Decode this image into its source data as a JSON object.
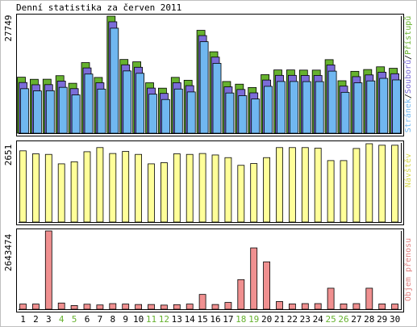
{
  "chart_data": [
    {
      "type": "bar",
      "title": "Denní statistika za červen 2011",
      "categories": [
        "1",
        "2",
        "3",
        "4",
        "5",
        "6",
        "7",
        "8",
        "9",
        "10",
        "11",
        "12",
        "13",
        "14",
        "15",
        "16",
        "17",
        "18",
        "19",
        "20",
        "21",
        "22",
        "23",
        "24",
        "25",
        "26",
        "27",
        "28",
        "29",
        "30"
      ],
      "weekend_days": [
        "4",
        "5",
        "11",
        "12",
        "18",
        "19",
        "25",
        "26"
      ],
      "ylabel": "27749",
      "legend": [
        "Stránek",
        "Souborů",
        "Přístupů"
      ],
      "ylim": [
        0,
        27749
      ],
      "series": [
        {
          "name": "Přístupů",
          "color": "#66b22e",
          "values": [
            13280,
            12780,
            12800,
            13640,
            11840,
            16740,
            13220,
            27749,
            17480,
            16930,
            11960,
            10680,
            13240,
            12560,
            24390,
            19310,
            12260,
            11630,
            10840,
            13880,
            15000,
            15000,
            14960,
            14960,
            17440,
            12440,
            14670,
            15100,
            15740,
            15390
          ]
        },
        {
          "name": "Souborů",
          "color": "#7b6cd8",
          "values": [
            12400,
            11870,
            11900,
            12740,
            10950,
            15860,
            12340,
            26800,
            16600,
            16020,
            11080,
            9820,
            12350,
            11660,
            23530,
            18420,
            11370,
            10750,
            9950,
            12990,
            14100,
            14100,
            14070,
            14070,
            16560,
            11550,
            13790,
            14200,
            14840,
            14490
          ]
        },
        {
          "name": "Stránek",
          "color": "#70b7f0",
          "values": [
            11320,
            10800,
            10840,
            11640,
            9840,
            14790,
            11230,
            25660,
            15530,
            14970,
            10020,
            8760,
            11240,
            10550,
            22460,
            17330,
            10300,
            9660,
            8880,
            11880,
            13030,
            13030,
            13000,
            13000,
            15480,
            10460,
            12710,
            13160,
            13770,
            13400
          ]
        }
      ]
    },
    {
      "type": "bar",
      "categories": [
        "1",
        "2",
        "3",
        "4",
        "5",
        "6",
        "7",
        "8",
        "9",
        "10",
        "11",
        "12",
        "13",
        "14",
        "15",
        "16",
        "17",
        "18",
        "19",
        "20",
        "21",
        "22",
        "23",
        "24",
        "25",
        "26",
        "27",
        "28",
        "29",
        "30"
      ],
      "ylabel": "2651",
      "legend": [
        "Návštěv"
      ],
      "ylim": [
        0,
        2651
      ],
      "series": [
        {
          "name": "Návštěv",
          "color": "#ffff99",
          "values": [
            2410,
            2310,
            2290,
            1970,
            2040,
            2380,
            2520,
            2320,
            2390,
            2290,
            1970,
            2010,
            2310,
            2290,
            2320,
            2270,
            2180,
            1920,
            1980,
            2180,
            2520,
            2520,
            2520,
            2500,
            2080,
            2080,
            2490,
            2651,
            2600,
            2600
          ]
        }
      ]
    },
    {
      "type": "bar",
      "categories": [
        "1",
        "2",
        "3",
        "4",
        "5",
        "6",
        "7",
        "8",
        "9",
        "10",
        "11",
        "12",
        "13",
        "14",
        "15",
        "16",
        "17",
        "18",
        "19",
        "20",
        "21",
        "22",
        "23",
        "24",
        "25",
        "26",
        "27",
        "28",
        "29",
        "30"
      ],
      "ylabel": "2643474",
      "legend": [
        "Objem přenosu"
      ],
      "ylim": [
        0,
        2643474
      ],
      "series": [
        {
          "name": "Objem přenosu",
          "color": "#f09090",
          "values": [
            175000,
            175000,
            2643474,
            210000,
            125000,
            170000,
            145000,
            190000,
            175000,
            160000,
            160000,
            140000,
            155000,
            175000,
            500000,
            160000,
            230000,
            1000000,
            2070000,
            1600000,
            260000,
            180000,
            190000,
            190000,
            710000,
            180000,
            190000,
            710000,
            180000,
            175000
          ]
        }
      ]
    }
  ]
}
